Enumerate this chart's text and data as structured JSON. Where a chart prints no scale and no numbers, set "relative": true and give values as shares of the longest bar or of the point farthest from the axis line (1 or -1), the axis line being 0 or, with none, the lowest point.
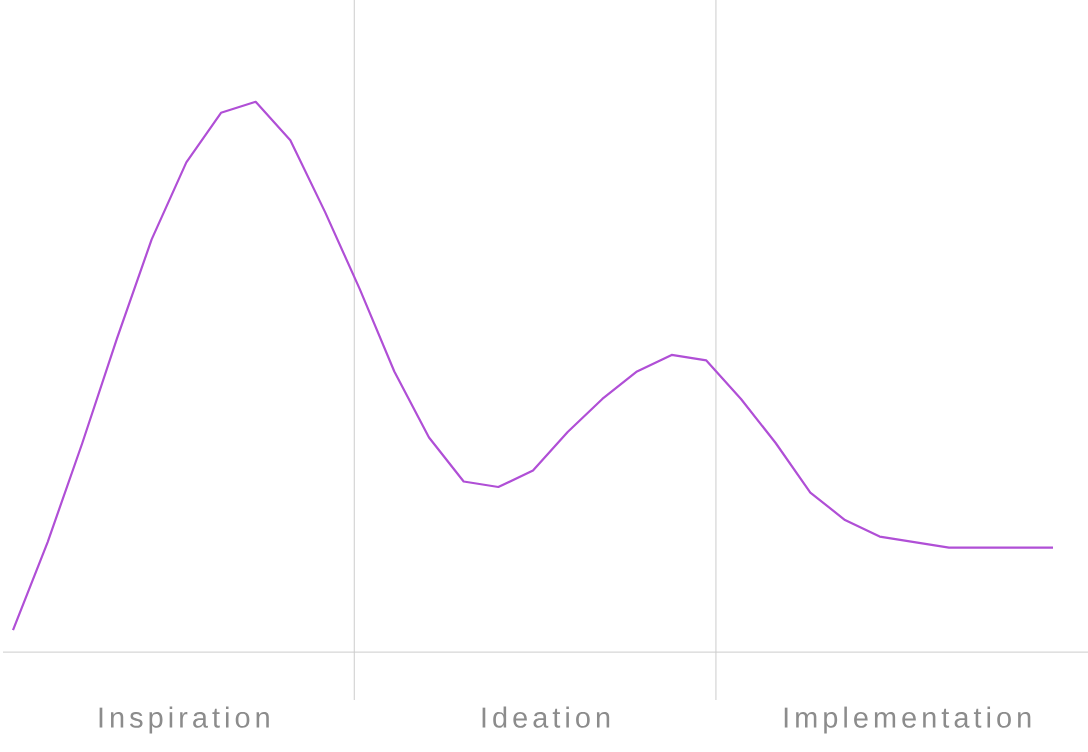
{
  "chart_data": {
    "type": "line",
    "relative": true,
    "color": "#b04fd6",
    "line_style": "solid",
    "marker": "none",
    "categories": [
      null,
      null,
      null,
      null,
      null,
      null,
      null,
      null,
      null,
      null,
      null,
      null,
      null,
      null,
      null,
      null,
      null,
      null,
      null,
      null,
      null,
      null,
      null,
      null,
      null,
      null,
      null,
      null,
      null,
      null,
      null
    ],
    "values": [
      0.04,
      0.2,
      0.38,
      0.57,
      0.75,
      0.89,
      0.98,
      1.0,
      0.93,
      0.8,
      0.66,
      0.51,
      0.39,
      0.31,
      0.3,
      0.33,
      0.4,
      0.46,
      0.51,
      0.54,
      0.53,
      0.46,
      0.38,
      0.29,
      0.24,
      0.21,
      0.2,
      0.19,
      0.19,
      0.19,
      0.19
    ],
    "annotations": [
      "Inspiration",
      "Ideation",
      "Implementation"
    ]
  }
}
